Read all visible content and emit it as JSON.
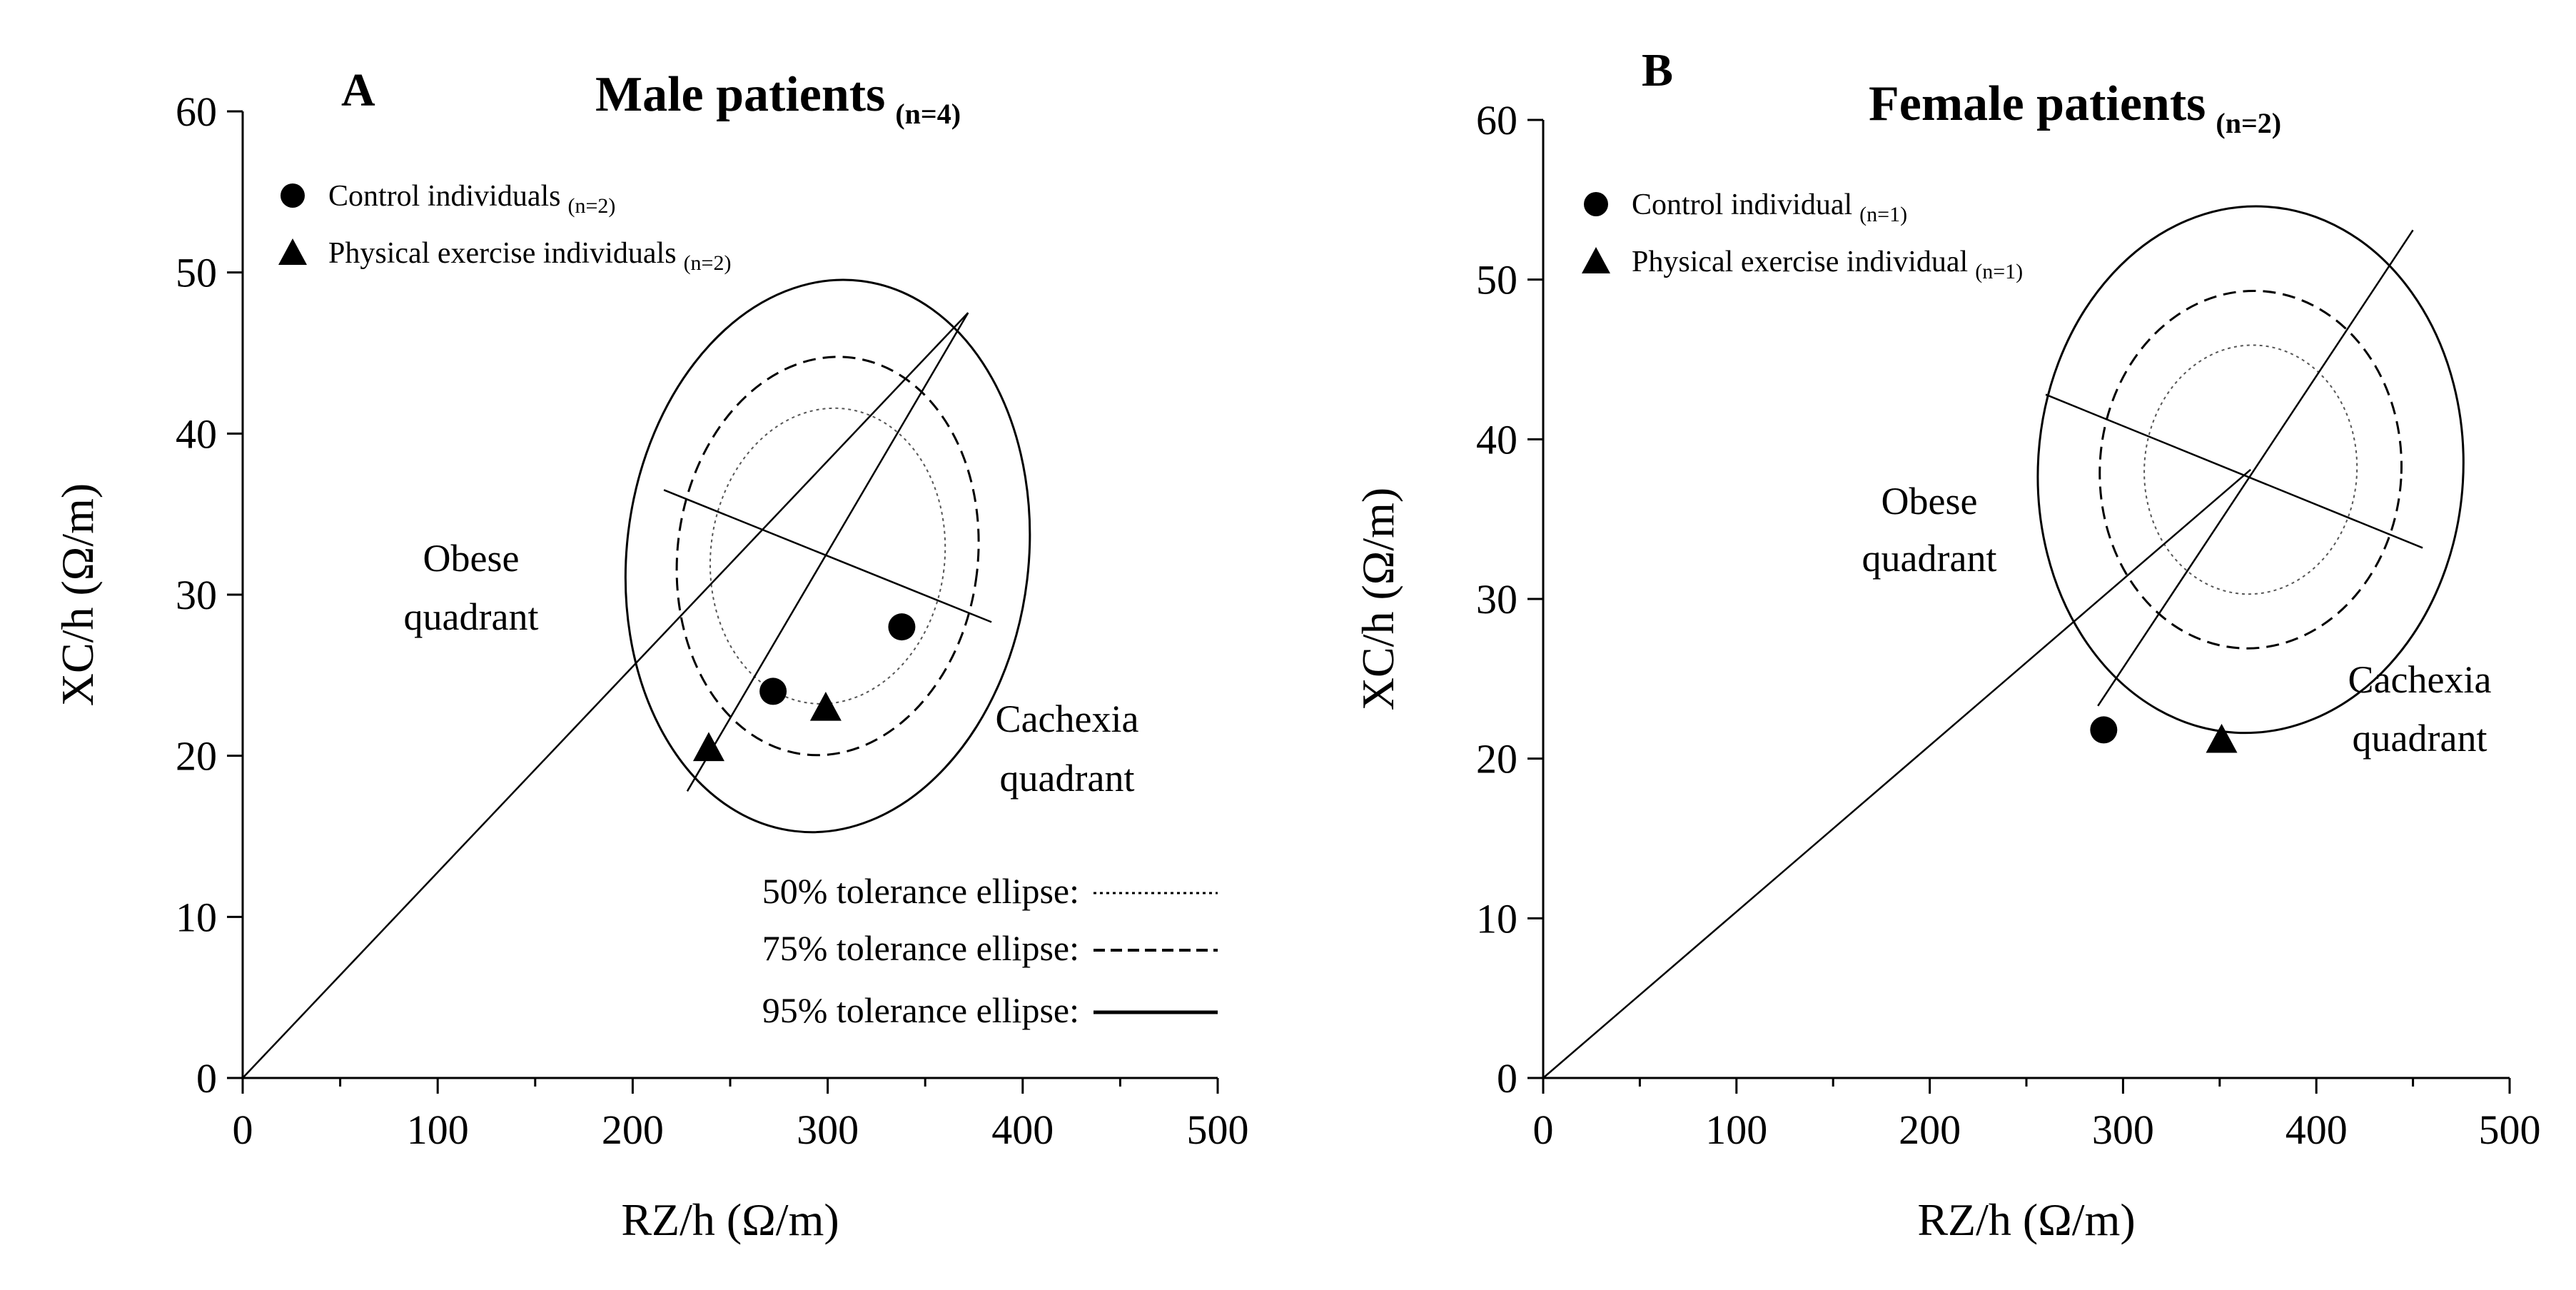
{
  "chart_data": [
    {
      "type": "scatter",
      "panel_label": "A",
      "title": "Male patients",
      "title_suffix": "(n=4)",
      "xlabel": "RZ/h (Ω/m)",
      "ylabel": "XC/h (Ω/m)",
      "xlim": [
        0,
        500
      ],
      "ylim": [
        0,
        60
      ],
      "x_ticks": [
        0,
        100,
        200,
        300,
        400,
        500
      ],
      "y_ticks": [
        0,
        10,
        20,
        30,
        40,
        50,
        60
      ],
      "legend_placement": "top-left",
      "legend": [
        {
          "marker": "circle",
          "label": "Control individuals",
          "suffix": "(n=2)"
        },
        {
          "marker": "triangle",
          "label": "Physical exercise individuals",
          "suffix": "(n=2)"
        }
      ],
      "series": [
        {
          "name": "Control individuals",
          "marker": "circle",
          "points": [
            [
              272,
              24
            ],
            [
              338,
              28
            ]
          ]
        },
        {
          "name": "Physical exercise individuals",
          "marker": "triangle",
          "points": [
            [
              239,
              20.5
            ],
            [
              299,
              23
            ]
          ]
        }
      ],
      "ellipses": {
        "center": [
          300,
          32.4
        ],
        "tolerance_levels": [
          {
            "percent": 50,
            "style": "dotted",
            "semi_axes": [
              60,
              9.2
            ]
          },
          {
            "percent": 75,
            "style": "dashed",
            "semi_axes": [
              77,
              12.4
            ]
          },
          {
            "percent": 95,
            "style": "solid",
            "semi_axes": [
              103,
              17.2
            ]
          }
        ],
        "tilt": 0.12
      },
      "lines": [
        {
          "name": "origin line",
          "from": [
            0,
            0
          ],
          "to": [
            372,
            47.5
          ]
        },
        {
          "name": "major axis",
          "from": [
            228,
            17.8
          ],
          "to": [
            372,
            47.5
          ]
        },
        {
          "name": "minor axis",
          "from": [
            216,
            36.5
          ],
          "to": [
            384,
            28.3
          ]
        }
      ],
      "annotations": {
        "obese": [
          "Obese",
          "quadrant"
        ],
        "cachexia": [
          "Cachexia",
          "quadrant"
        ]
      },
      "tolerance_legend": [
        {
          "label": "50% tolerance ellipse:",
          "style": "dotted"
        },
        {
          "label": "75% tolerance ellipse:",
          "style": "dashed"
        },
        {
          "label": "95% tolerance ellipse:",
          "style": "solid"
        }
      ]
    },
    {
      "type": "scatter",
      "panel_label": "B",
      "title": "Female patients",
      "title_suffix": "(n=2)",
      "xlabel": "RZ/h (Ω/m)",
      "ylabel": "XC/h (Ω/m)",
      "xlim": [
        0,
        500
      ],
      "ylim": [
        0,
        60
      ],
      "x_ticks": [
        0,
        100,
        200,
        300,
        400,
        500
      ],
      "y_ticks": [
        0,
        10,
        20,
        30,
        40,
        50,
        60
      ],
      "legend_placement": "top-left",
      "legend": [
        {
          "marker": "circle",
          "label": "Control individual",
          "suffix": "(n=1)"
        },
        {
          "marker": "triangle",
          "label": "Physical exercise individual",
          "suffix": "(n=1)"
        }
      ],
      "series": [
        {
          "name": "Control individual",
          "marker": "circle",
          "points": [
            [
              290,
              21.8
            ]
          ]
        },
        {
          "name": "Physical exercise individual",
          "marker": "triangle",
          "points": [
            [
              351,
              21.2
            ]
          ]
        }
      ],
      "ellipses": {
        "center": [
          366,
          38.1
        ],
        "tolerance_levels": [
          {
            "percent": 50,
            "style": "dotted",
            "semi_axes": [
              55,
              7.8
            ]
          },
          {
            "percent": 75,
            "style": "dashed",
            "semi_axes": [
              78,
              11.2
            ]
          },
          {
            "percent": 95,
            "style": "solid",
            "semi_axes": [
              110,
              16.5
            ]
          }
        ],
        "tilt": 0.06
      },
      "lines": [
        {
          "name": "origin line",
          "from": [
            0,
            0
          ],
          "to": [
            366,
            38.1
          ]
        },
        {
          "name": "major axis",
          "from": [
            287,
            23.3
          ],
          "to": [
            450,
            53.1
          ]
        },
        {
          "name": "minor axis",
          "from": [
            260,
            42.8
          ],
          "to": [
            455,
            33.2
          ]
        }
      ],
      "annotations": {
        "obese": [
          "Obese",
          "quadrant"
        ],
        "cachexia": [
          "Cachexia",
          "quadrant"
        ]
      }
    }
  ]
}
